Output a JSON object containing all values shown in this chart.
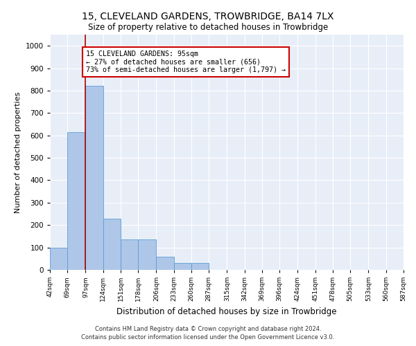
{
  "title": "15, CLEVELAND GARDENS, TROWBRIDGE, BA14 7LX",
  "subtitle": "Size of property relative to detached houses in Trowbridge",
  "xlabel": "Distribution of detached houses by size in Trowbridge",
  "ylabel": "Number of detached properties",
  "footer_line1": "Contains HM Land Registry data © Crown copyright and database right 2024.",
  "footer_line2": "Contains public sector information licensed under the Open Government Licence v3.0.",
  "bin_edges": [
    42,
    69,
    97,
    124,
    151,
    178,
    206,
    233,
    260,
    287,
    315,
    342,
    369,
    396,
    424,
    451,
    478,
    505,
    533,
    560,
    587
  ],
  "bin_labels": [
    "42sqm",
    "69sqm",
    "97sqm",
    "124sqm",
    "151sqm",
    "178sqm",
    "206sqm",
    "233sqm",
    "260sqm",
    "287sqm",
    "315sqm",
    "342sqm",
    "369sqm",
    "396sqm",
    "424sqm",
    "451sqm",
    "478sqm",
    "505sqm",
    "533sqm",
    "560sqm",
    "587sqm"
  ],
  "bar_heights": [
    100,
    615,
    820,
    230,
    135,
    135,
    60,
    30,
    30,
    0,
    0,
    0,
    0,
    0,
    0,
    0,
    0,
    0,
    0,
    0
  ],
  "bar_color": "#aec6e8",
  "bar_edge_color": "#5a9fd4",
  "bg_color": "#e8eef7",
  "grid_color": "#ffffff",
  "vline_x": 97,
  "vline_color": "#aa0000",
  "annotation_text": "15 CLEVELAND GARDENS: 95sqm\n← 27% of detached houses are smaller (656)\n73% of semi-detached houses are larger (1,797) →",
  "annotation_box_color": "#cc0000",
  "ylim_max": 1050,
  "yticks": [
    0,
    100,
    200,
    300,
    400,
    500,
    600,
    700,
    800,
    900,
    1000
  ],
  "fig_width": 6.0,
  "fig_height": 5.0,
  "dpi": 100
}
